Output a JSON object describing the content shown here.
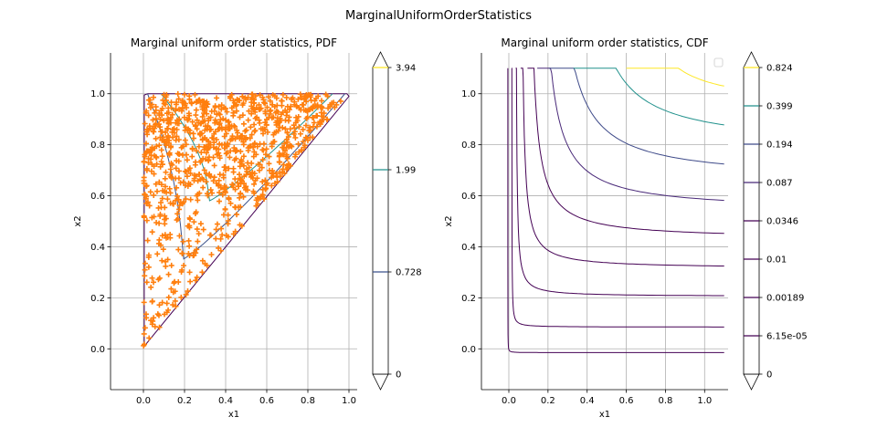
{
  "figure_title": "MarginalUniformOrderStatistics",
  "chart_data": [
    {
      "type": "contour",
      "title": "Marginal uniform order statistics, PDF",
      "xlabel": "x1",
      "ylabel": "x2",
      "xlim": [
        -0.16,
        1.04
      ],
      "ylim": [
        -0.16,
        1.16
      ],
      "xticks": [
        "0.0",
        "0.2",
        "0.4",
        "0.6",
        "0.8",
        "1.0"
      ],
      "yticks": [
        "0.0",
        "0.2",
        "0.4",
        "0.6",
        "0.8",
        "1.0"
      ],
      "grid": true,
      "domain": "triangle 0 <= x1 <= x2 <= 1",
      "contour_levels": [
        {
          "level": 0,
          "color": "#440154"
        },
        {
          "level": 0.728,
          "color": "#3b528b"
        },
        {
          "level": 1.99,
          "color": "#21918c"
        }
      ],
      "colorbar": {
        "ticks": [
          "0",
          "0.728",
          "1.99",
          "3.94"
        ],
        "colors": [
          "#440154",
          "#3b528b",
          "#21918c",
          "#fde725"
        ]
      },
      "scatter": {
        "marker": "+",
        "color": "#ff7f0e",
        "approx_count": 1000,
        "description": "sample of ordered uniform pairs, concentrated near x2 = 1"
      }
    },
    {
      "type": "contour",
      "title": "Marginal uniform order statistics, CDF",
      "xlabel": "x1",
      "ylabel": "x2",
      "xlim": [
        -0.14,
        1.12
      ],
      "ylim": [
        -0.16,
        1.16
      ],
      "xticks": [
        "0.0",
        "0.2",
        "0.4",
        "0.6",
        "0.8",
        "1.0"
      ],
      "yticks": [
        "0.0",
        "0.2",
        "0.4",
        "0.6",
        "0.8",
        "1.0"
      ],
      "grid": true,
      "legend": "top-right (empty)",
      "contour_levels": [
        {
          "level": 0,
          "color": "#440154"
        },
        {
          "level": 6.15e-05,
          "color": "#440154"
        },
        {
          "level": 0.00189,
          "color": "#440154"
        },
        {
          "level": 0.01,
          "color": "#440154"
        },
        {
          "level": 0.0346,
          "color": "#440154"
        },
        {
          "level": 0.087,
          "color": "#482878"
        },
        {
          "level": 0.194,
          "color": "#3e4a89"
        },
        {
          "level": 0.399,
          "color": "#21918c"
        },
        {
          "level": 0.824,
          "color": "#fde725"
        }
      ],
      "colorbar": {
        "ticks": [
          "0",
          "6.15e-05",
          "0.00189",
          "0.01",
          "0.0346",
          "0.087",
          "0.194",
          "0.399",
          "0.824"
        ]
      }
    }
  ]
}
